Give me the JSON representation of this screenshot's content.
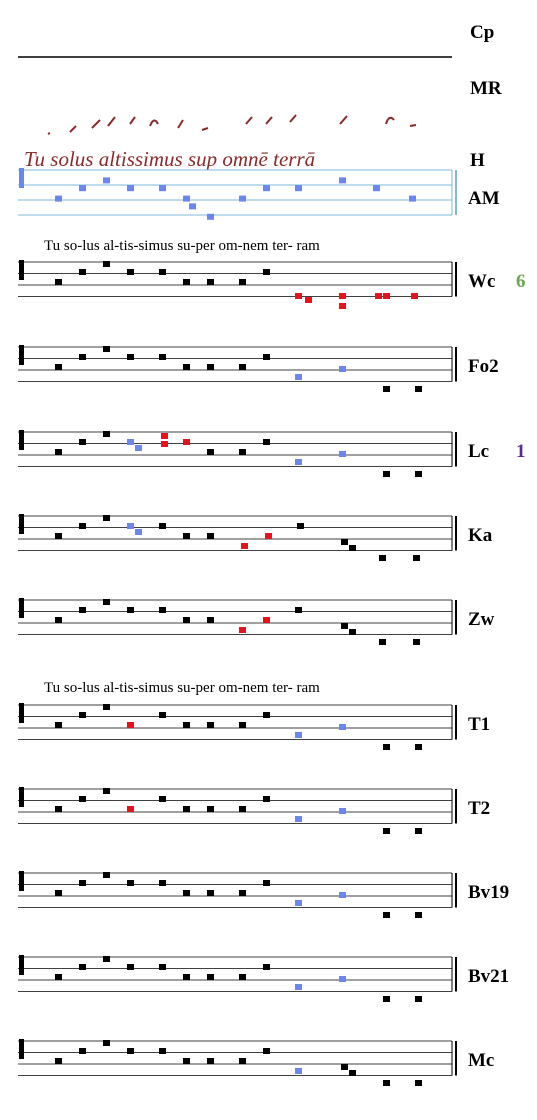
{
  "header": {
    "top_label": "Cp",
    "second_label": "MR"
  },
  "manuscript": {
    "text": "Tu solus altissimus sup omnē terrā",
    "label": "H"
  },
  "lyrics": [
    "Tu so-lus al-tis-simus su-per om-nem ter- ram",
    "Tu so-lus al-tis-simus su-per om-nem ter- ram"
  ],
  "staves": [
    {
      "label": "AM"
    },
    {
      "label": "Wc",
      "count": 6
    },
    {
      "label": "Fo2"
    },
    {
      "label": "Lc",
      "count": 1
    },
    {
      "label": "Ka"
    },
    {
      "label": "Zw"
    },
    {
      "label": "T1"
    },
    {
      "label": "T2"
    },
    {
      "label": "Bv19"
    },
    {
      "label": "Bv21"
    },
    {
      "label": "Mc"
    }
  ]
}
